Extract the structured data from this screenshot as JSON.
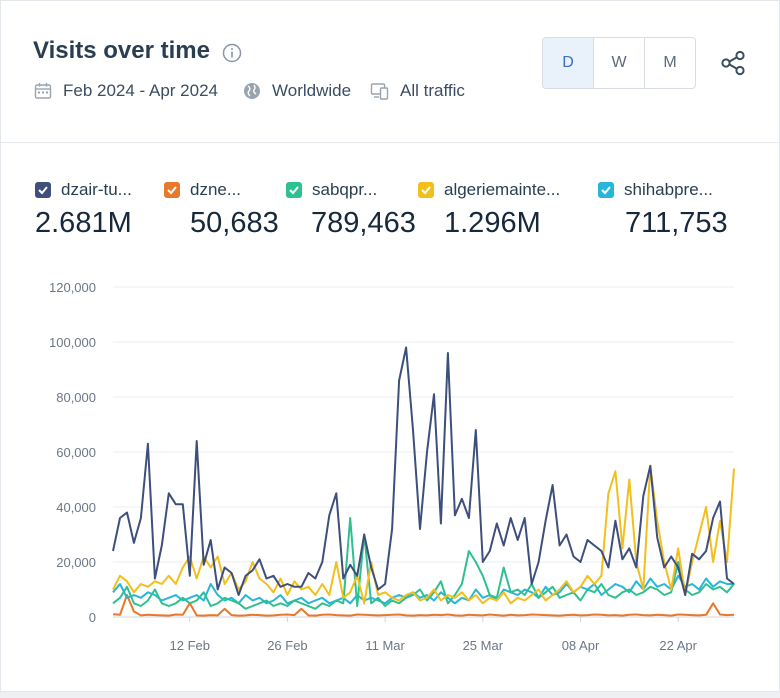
{
  "header": {
    "title": "Visits over time",
    "date_range": "Feb 2024 - Apr 2024",
    "region": "Worldwide",
    "traffic": "All traffic",
    "granularity": [
      "D",
      "W",
      "M"
    ],
    "selected_granularity": "D"
  },
  "legend": [
    {
      "label": "dzair-tu...",
      "value": "2.681M",
      "color": "#3e4f7c"
    },
    {
      "label": "dzne...",
      "value": "50,683",
      "color": "#e8782c"
    },
    {
      "label": "sabqpr...",
      "value": "789,463",
      "color": "#2fc08f"
    },
    {
      "label": "algeriemainte...",
      "value": "1.296M",
      "color": "#f2bf1d"
    },
    {
      "label": "shihabpre...",
      "value": "711,753",
      "color": "#27b6d9"
    }
  ],
  "chart_data": {
    "type": "line",
    "x_start": "2024-02-01",
    "x_end": "2024-04-30",
    "x_ticks": [
      "12 Feb",
      "26 Feb",
      "11 Mar",
      "25 Mar",
      "08 Apr",
      "22 Apr"
    ],
    "y_ticks": [
      "0",
      "20,000",
      "40,000",
      "60,000",
      "80,000",
      "100,000",
      "120,000"
    ],
    "ylim": [
      0,
      120000
    ],
    "grid": true,
    "series": [
      {
        "name": "dzair-tu...",
        "color": "#3e4f7c",
        "values": [
          24000,
          36000,
          38000,
          27000,
          36000,
          63000,
          14000,
          26000,
          45000,
          41000,
          41000,
          15000,
          64000,
          19000,
          28000,
          10000,
          18000,
          16000,
          8000,
          15000,
          17000,
          21000,
          14000,
          15000,
          11000,
          12000,
          11000,
          11000,
          16000,
          14000,
          20000,
          37000,
          45000,
          14000,
          19000,
          15000,
          30000,
          18000,
          10000,
          12000,
          32000,
          86000,
          98000,
          68000,
          32000,
          60000,
          81000,
          34000,
          96000,
          37000,
          43000,
          36000,
          68000,
          20000,
          24000,
          34000,
          26000,
          36000,
          28000,
          36000,
          12000,
          20000,
          35000,
          48000,
          26000,
          30000,
          22000,
          20000,
          28000,
          26000,
          24000,
          18000,
          35000,
          21000,
          25000,
          18000,
          44000,
          55000,
          29000,
          18000,
          22000,
          18000,
          8000,
          23000,
          21000,
          24000,
          36000,
          42000,
          14000,
          12000
        ]
      },
      {
        "name": "dzne...",
        "color": "#e8782c",
        "values": [
          1000,
          800,
          8000,
          2000,
          600,
          800,
          700,
          600,
          500,
          900,
          800,
          5000,
          600,
          500,
          700,
          600,
          3000,
          700,
          500,
          600,
          800,
          700,
          500,
          600,
          800,
          900,
          700,
          3000,
          600,
          500,
          800,
          900,
          700,
          600,
          500,
          900,
          800,
          700,
          600,
          700,
          800,
          900,
          600,
          500,
          700,
          600,
          800,
          700,
          900,
          600,
          500,
          800,
          700,
          600,
          900,
          700,
          500,
          800,
          600,
          700,
          900,
          800,
          700,
          600,
          500,
          700,
          800,
          600,
          700,
          900,
          800,
          600,
          700,
          500,
          800,
          900,
          700,
          600,
          800,
          700,
          500,
          900,
          800,
          700,
          600,
          800,
          5000,
          900,
          700,
          800
        ]
      },
      {
        "name": "sabqpr...",
        "color": "#2fc08f",
        "values": [
          5000,
          7000,
          11000,
          5000,
          4000,
          6000,
          10000,
          5000,
          4000,
          5000,
          7000,
          5000,
          6000,
          9000,
          4000,
          5000,
          7000,
          6000,
          5000,
          3000,
          4000,
          5000,
          6000,
          4000,
          5000,
          4000,
          6000,
          5000,
          4000,
          3000,
          5000,
          4000,
          6000,
          5000,
          36000,
          4000,
          30000,
          5000,
          7000,
          4000,
          6000,
          5000,
          7000,
          8000,
          10000,
          6000,
          9000,
          13000,
          5000,
          8000,
          12000,
          24000,
          20000,
          15000,
          8000,
          7000,
          18000,
          9000,
          10000,
          8000,
          12000,
          7000,
          9000,
          11000,
          7000,
          8000,
          9000,
          6000,
          10000,
          9000,
          12000,
          8000,
          7000,
          9000,
          10000,
          8000,
          9000,
          11000,
          10000,
          8000,
          9000,
          20000,
          10000,
          8000,
          9000,
          12000,
          10000,
          11000,
          9000,
          12000
        ]
      },
      {
        "name": "algeriemainte...",
        "color": "#f2bf1d",
        "values": [
          10000,
          15000,
          13000,
          9000,
          12000,
          11000,
          13000,
          12000,
          15000,
          12000,
          18000,
          22000,
          14000,
          22000,
          18000,
          22000,
          12000,
          16000,
          10000,
          13000,
          20000,
          14000,
          12000,
          9000,
          14000,
          8000,
          13000,
          10000,
          11000,
          8000,
          12000,
          8000,
          20000,
          7000,
          9000,
          15000,
          5000,
          20000,
          8000,
          9000,
          7000,
          6000,
          8000,
          9000,
          6000,
          7000,
          10000,
          6000,
          8000,
          7000,
          9000,
          6000,
          8000,
          5000,
          7000,
          6000,
          9000,
          5000,
          7000,
          6000,
          8000,
          10000,
          6000,
          8000,
          10000,
          13000,
          9000,
          11000,
          15000,
          12000,
          15000,
          45000,
          53000,
          25000,
          50000,
          20000,
          10000,
          55000,
          35000,
          20000,
          10000,
          25000,
          8000,
          20000,
          30000,
          40000,
          20000,
          35000,
          20000,
          54000
        ]
      },
      {
        "name": "shihabpre...",
        "color": "#27b6d9",
        "values": [
          9000,
          12000,
          7000,
          8000,
          7000,
          9000,
          8000,
          6000,
          7000,
          8000,
          6000,
          7000,
          8000,
          6000,
          12000,
          8000,
          6000,
          7000,
          5000,
          8000,
          6000,
          7000,
          5000,
          6000,
          8000,
          5000,
          6000,
          7000,
          5000,
          6000,
          7000,
          5000,
          6000,
          7000,
          5000,
          8000,
          6000,
          7000,
          6000,
          5000,
          7000,
          8000,
          7000,
          9000,
          7000,
          8000,
          6000,
          9000,
          7000,
          5000,
          7000,
          6000,
          10000,
          7000,
          8000,
          6000,
          10000,
          9000,
          8000,
          10000,
          9000,
          7000,
          11000,
          8000,
          9000,
          12000,
          9000,
          11000,
          10000,
          12000,
          8000,
          10000,
          12000,
          11000,
          9000,
          13000,
          10000,
          14000,
          11000,
          12000,
          10000,
          15000,
          11000,
          12000,
          10000,
          14000,
          11000,
          13000,
          12000,
          12000
        ]
      }
    ]
  }
}
